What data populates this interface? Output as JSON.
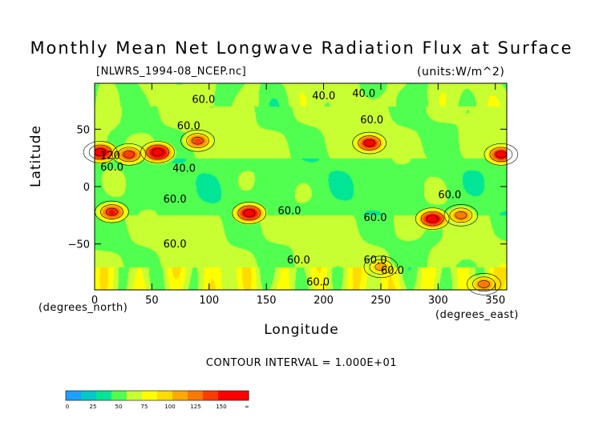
{
  "chart_data": {
    "type": "heatmap",
    "title": "Monthly Mean Net Longwave Radiation Flux at Surface",
    "subtitle_left": "[NLWRS_1994-08_NCEP.nc]",
    "subtitle_right": "(units:W/m^2)",
    "xlabel": "Longitude",
    "ylabel": "Latitude",
    "x_unit_label": "(degrees_east)",
    "y_unit_label": "(degrees_north)",
    "xlim": [
      0,
      360
    ],
    "ylim": [
      -90,
      90
    ],
    "x_ticks": [
      0,
      50,
      100,
      150,
      200,
      250,
      300,
      350
    ],
    "y_ticks": [
      -50,
      0,
      50
    ],
    "contour_interval_text": "CONTOUR INTERVAL = 1.000E+01",
    "contour_labels": [
      {
        "text": "60.0",
        "lon": 85,
        "lat": 73
      },
      {
        "text": "40.0",
        "lon": 190,
        "lat": 76
      },
      {
        "text": "40.0",
        "lon": 225,
        "lat": 78
      },
      {
        "text": "60.0",
        "lon": 232,
        "lat": 55
      },
      {
        "text": "60.0",
        "lon": 72,
        "lat": 50
      },
      {
        "text": "120",
        "lon": 5,
        "lat": 24
      },
      {
        "text": "60.0",
        "lon": 5,
        "lat": 14
      },
      {
        "text": "40.0",
        "lon": 68,
        "lat": 13
      },
      {
        "text": "60.0",
        "lon": 60,
        "lat": -14
      },
      {
        "text": "60.0",
        "lon": 160,
        "lat": -24
      },
      {
        "text": "60.0",
        "lon": 235,
        "lat": -30
      },
      {
        "text": "60.0",
        "lon": 300,
        "lat": -10
      },
      {
        "text": "60.0",
        "lon": 60,
        "lat": -53
      },
      {
        "text": "60.0",
        "lon": 168,
        "lat": -67
      },
      {
        "text": "60.0",
        "lon": 235,
        "lat": -67
      },
      {
        "text": "60.0",
        "lon": 250,
        "lat": -76
      },
      {
        "text": "60.0",
        "lon": 185,
        "lat": -86
      }
    ],
    "hotspots": [
      {
        "lon": 5,
        "lat": 30,
        "value": 150
      },
      {
        "lon": 30,
        "lat": 28,
        "value": 125
      },
      {
        "lon": 55,
        "lat": 30,
        "value": 160
      },
      {
        "lon": 90,
        "lat": 40,
        "value": 120
      },
      {
        "lon": 240,
        "lat": 38,
        "value": 140
      },
      {
        "lon": 355,
        "lat": 28,
        "value": 140
      },
      {
        "lon": 15,
        "lat": -22,
        "value": 130
      },
      {
        "lon": 135,
        "lat": -23,
        "value": 150
      },
      {
        "lon": 295,
        "lat": -28,
        "value": 150
      },
      {
        "lon": 320,
        "lat": -25,
        "value": 110
      },
      {
        "lon": 250,
        "lat": -70,
        "value": 95
      },
      {
        "lon": 340,
        "lat": -85,
        "value": 110
      }
    ],
    "colorbar": {
      "labels": [
        "0",
        "25",
        "50",
        "75",
        "100",
        "125",
        "150",
        "∞"
      ],
      "colors": [
        "#1ea0ff",
        "#00c8c8",
        "#00e696",
        "#50ff50",
        "#c8ff32",
        "#ffff00",
        "#ffdc00",
        "#ffaa00",
        "#ff7800",
        "#ff3c00",
        "#ff0000",
        "#ff0000"
      ]
    }
  }
}
